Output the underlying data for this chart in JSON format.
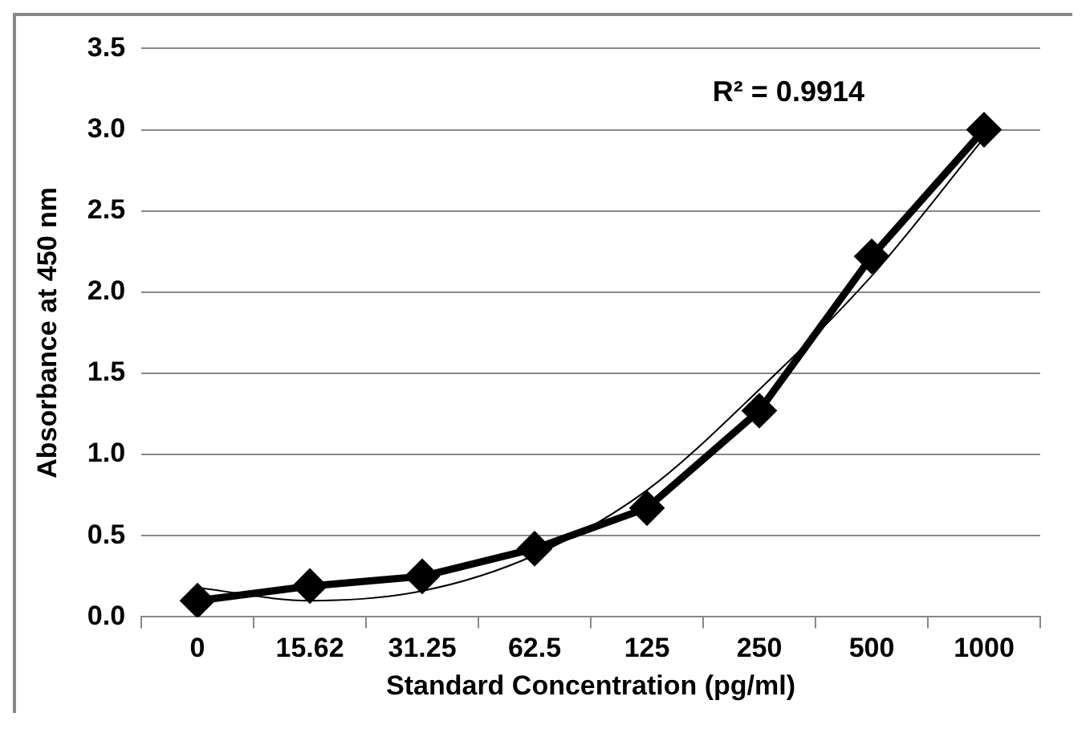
{
  "chart_data": {
    "type": "line",
    "xlabel": "Standard Concentration (pg/ml)",
    "ylabel": "Absorbance at 450 nm",
    "categories": [
      "0",
      "15.62",
      "31.25",
      "62.5",
      "125",
      "250",
      "500",
      "1000"
    ],
    "series": [
      {
        "color": "#000000",
        "values": [
          0.1,
          0.19,
          0.25,
          0.42,
          0.67,
          1.27,
          2.22,
          3.0
        ],
        "marker": "diamond"
      },
      {
        "color": "#000000",
        "values": [
          0.18,
          0.1,
          0.16,
          0.38,
          0.78,
          1.4,
          2.1,
          2.95
        ],
        "marker": "none"
      }
    ],
    "ylim": [
      0,
      3.5
    ],
    "yticks": [
      {
        "value": 0,
        "label": "0.0"
      },
      {
        "value": 0.5,
        "label": "0.5"
      },
      {
        "value": 1,
        "label": "1.0"
      },
      {
        "value": 1.5,
        "label": "1.5"
      },
      {
        "value": 2,
        "label": "2.0"
      },
      {
        "value": 2.5,
        "label": "2.5"
      },
      {
        "value": 3,
        "label": "3.0"
      },
      {
        "value": 3.5,
        "label": "3.5"
      }
    ],
    "grid": "y",
    "legend": false,
    "annotations": [
      "R² = 0.9914"
    ]
  }
}
